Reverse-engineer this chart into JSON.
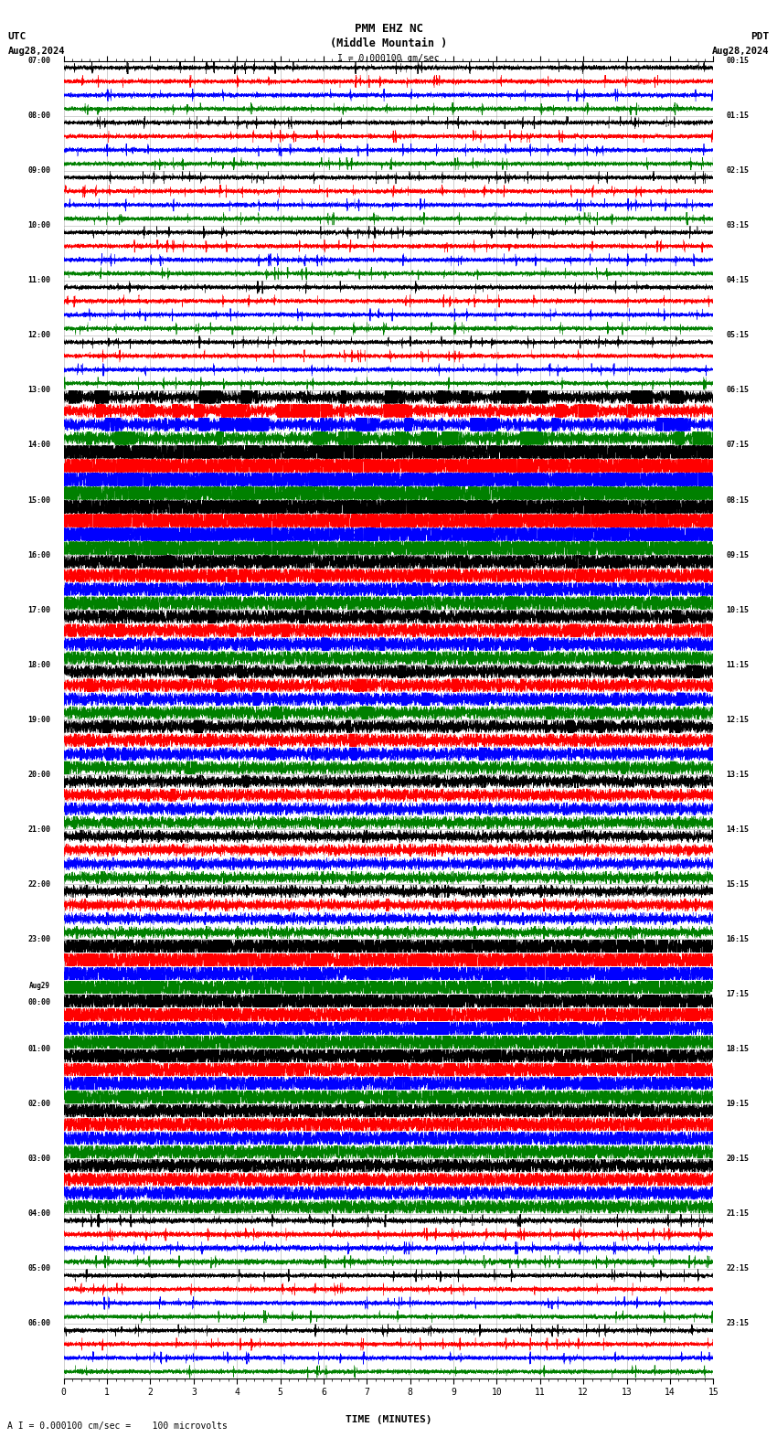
{
  "title_line1": "PMM EHZ NC",
  "title_line2": "(Middle Mountain )",
  "scale_text": "I = 0.000100 cm/sec",
  "top_left_label": "UTC",
  "top_left_date": "Aug28,2024",
  "top_right_label": "PDT",
  "top_right_date": "Aug28,2024",
  "bottom_label": "TIME (MINUTES)",
  "bottom_note": "A I = 0.000100 cm/sec =    100 microvolts",
  "utc_labels": [
    "07:00",
    "08:00",
    "09:00",
    "10:00",
    "11:00",
    "12:00",
    "13:00",
    "14:00",
    "15:00",
    "16:00",
    "17:00",
    "18:00",
    "19:00",
    "20:00",
    "21:00",
    "22:00",
    "23:00",
    "Aug29\n00:00",
    "01:00",
    "02:00",
    "03:00",
    "04:00",
    "05:00",
    "06:00"
  ],
  "pdt_labels": [
    "00:15",
    "01:15",
    "02:15",
    "03:15",
    "04:15",
    "05:15",
    "06:15",
    "07:15",
    "08:15",
    "09:15",
    "10:15",
    "11:15",
    "12:15",
    "13:15",
    "14:15",
    "15:15",
    "16:15",
    "17:15",
    "18:15",
    "19:15",
    "20:15",
    "21:15",
    "22:15",
    "23:15"
  ],
  "n_rows": 24,
  "n_traces_per_row": 4,
  "trace_colors": [
    "black",
    "red",
    "blue",
    "green"
  ],
  "minutes_per_row": 15,
  "background_color": "white",
  "grid_color": "#888888",
  "tick_major": 1,
  "tick_minor": 0.2,
  "row_amplitude_scales": [
    0.12,
    0.12,
    0.12,
    0.12,
    0.12,
    0.12,
    0.35,
    1.0,
    0.95,
    0.55,
    0.45,
    0.4,
    0.38,
    0.35,
    0.3,
    0.28,
    0.65,
    0.6,
    0.55,
    0.5,
    0.45,
    0.15,
    0.12,
    0.12
  ]
}
